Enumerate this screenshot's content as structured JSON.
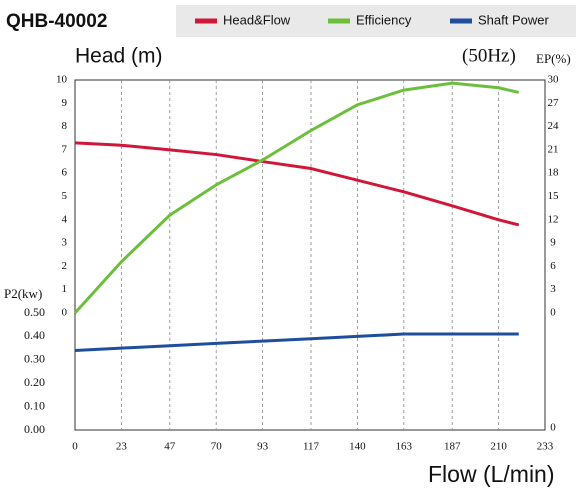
{
  "chart_data": {
    "type": "line",
    "title": "QHB-40002",
    "y_label": "Head (m)",
    "frequency_label": "(50Hz)",
    "y2_label": "EP(%)",
    "y3_label": "P2(kw)",
    "x_label": "Flow (L/min)",
    "x": [
      0,
      23,
      47,
      70,
      93,
      117,
      140,
      163,
      187,
      210,
      220
    ],
    "xlim": [
      0,
      233
    ],
    "xticks": [
      0,
      23,
      47,
      70,
      93,
      117,
      140,
      163,
      187,
      210,
      233
    ],
    "ylim": [
      0,
      10
    ],
    "yticks": [
      0,
      1,
      2,
      3,
      4,
      5,
      6,
      7,
      8,
      9,
      10
    ],
    "y2lim": [
      0,
      30
    ],
    "y2ticks": [
      0,
      3,
      6,
      9,
      12,
      15,
      18,
      21,
      24,
      27,
      30
    ],
    "y3lim": [
      0,
      0.5
    ],
    "y3ticks": [
      {
        "value": 0,
        "label": "0.00"
      },
      {
        "value": 0.1,
        "label": "0.10"
      },
      {
        "value": 0.2,
        "label": "0.20"
      },
      {
        "value": 0.3,
        "label": "0.30"
      },
      {
        "value": 0.4,
        "label": "0.40"
      },
      {
        "value": 0.5,
        "label": "0.50"
      }
    ],
    "y3ticks_right": [
      0
    ],
    "grid": true,
    "series": [
      {
        "name": "Head&Flow",
        "color": "#d0173a",
        "axis": "y",
        "values": [
          7.3,
          7.2,
          7.0,
          6.8,
          6.5,
          6.2,
          5.7,
          5.2,
          4.6,
          4.0,
          3.78
        ]
      },
      {
        "name": "Efficiency",
        "color": "#6cbf3c",
        "axis": "y2",
        "values": [
          0,
          6.6,
          12.6,
          16.5,
          19.7,
          23.5,
          26.8,
          28.7,
          29.6,
          29.0,
          28.4
        ]
      },
      {
        "name": "Shaft Power",
        "color": "#1f4e9c",
        "axis": "y3",
        "values": [
          0.34,
          0.35,
          0.36,
          0.37,
          0.38,
          0.39,
          0.4,
          0.41,
          0.41,
          0.41,
          0.41
        ]
      }
    ]
  }
}
